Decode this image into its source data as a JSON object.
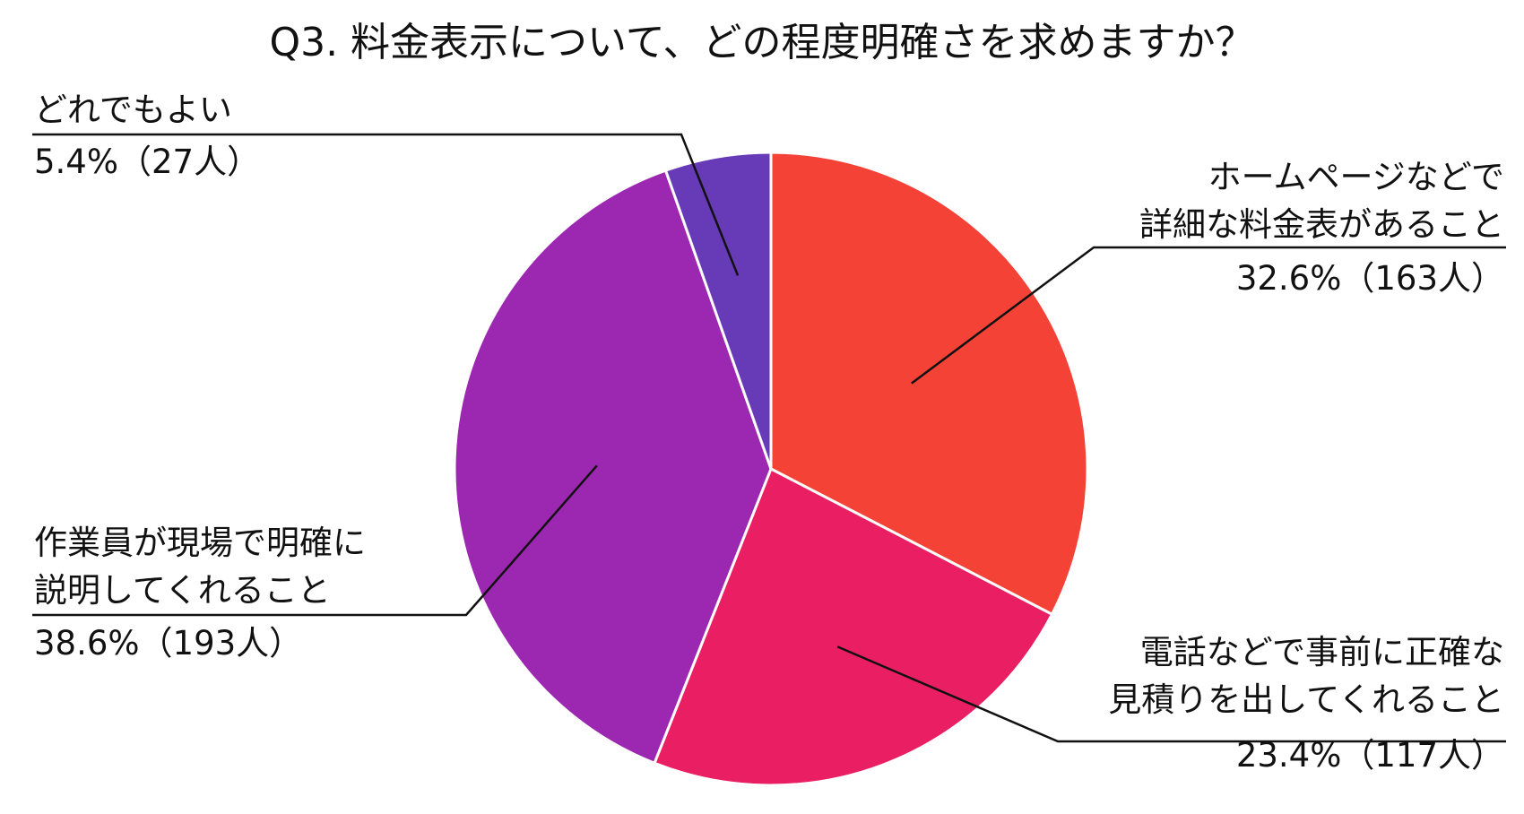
{
  "chart_data": {
    "type": "pie",
    "title": "Q3. 料金表示について、どの程度明確さを求めますか？",
    "slices": [
      {
        "lines": [
          "ホームページなどで",
          "詳細な料金表があること"
        ],
        "percent_label": "32.6%（163人）",
        "value": 32.6,
        "count": 163,
        "color": "#f44336"
      },
      {
        "lines": [
          "電話などで事前に正確な",
          "見積りを出してくれること"
        ],
        "percent_label": "23.4%（117人）",
        "value": 23.4,
        "count": 117,
        "color": "#e91e63"
      },
      {
        "lines": [
          "作業員が現場で明確に",
          "説明してくれること"
        ],
        "percent_label": "38.6%（193人）",
        "value": 38.6,
        "count": 193,
        "color": "#9c27b0"
      },
      {
        "lines": [
          "どれでもよい"
        ],
        "percent_label": "5.4%（27人）",
        "value": 5.4,
        "count": 27,
        "color": "#673ab7"
      }
    ]
  }
}
